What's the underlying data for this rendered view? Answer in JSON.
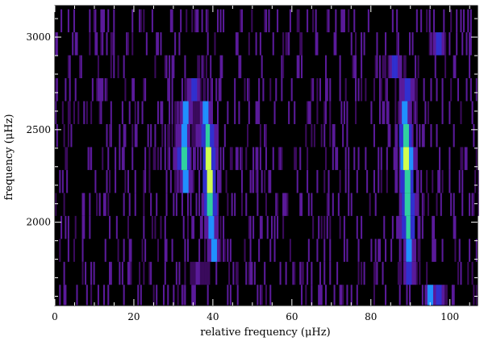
{
  "chart_data": {
    "type": "heatmap",
    "title": "",
    "xlabel": "relative frequency (μHz)",
    "ylabel": "frequency (μHz)",
    "xlim": [
      0,
      107
    ],
    "ylim": [
      1550,
      3170
    ],
    "x_ticks": [
      "0",
      "20",
      "40",
      "60",
      "80",
      "100"
    ],
    "x_tick_values": [
      0,
      20,
      40,
      60,
      80,
      100
    ],
    "y_ticks": [
      "2000",
      "2500",
      "3000"
    ],
    "y_tick_values": [
      2000,
      2500,
      3000
    ],
    "colormap": [
      "#000000",
      "#3a0a5c",
      "#5a1a9a",
      "#3030d0",
      "#2090ff",
      "#30d0a0",
      "#d0ff50",
      "#ffffff"
    ],
    "row_step": 124,
    "rows": [
      {
        "freq": 1600,
        "ridges": [
          {
            "x": 95,
            "v": 0.55
          },
          {
            "x": 97,
            "v": 0.45
          }
        ]
      },
      {
        "freq": 1724,
        "ridges": [
          {
            "x": 89.5,
            "v": 0.45
          },
          {
            "x": 36,
            "v": 0.3
          }
        ]
      },
      {
        "freq": 1848,
        "ridges": [
          {
            "x": 40,
            "v": 0.5
          },
          {
            "x": 89.5,
            "v": 0.55
          }
        ]
      },
      {
        "freq": 1972,
        "ridges": [
          {
            "x": 39.5,
            "v": 0.62
          },
          {
            "x": 89.3,
            "v": 0.72
          }
        ]
      },
      {
        "freq": 2096,
        "ridges": [
          {
            "x": 39.2,
            "v": 0.66
          },
          {
            "x": 89.2,
            "v": 0.7
          }
        ]
      },
      {
        "freq": 2220,
        "ridges": [
          {
            "x": 33,
            "v": 0.58
          },
          {
            "x": 39,
            "v": 0.82
          },
          {
            "x": 89,
            "v": 0.78
          }
        ]
      },
      {
        "freq": 2344,
        "ridges": [
          {
            "x": 32.5,
            "v": 0.66
          },
          {
            "x": 38.8,
            "v": 0.8
          },
          {
            "x": 88.8,
            "v": 0.92
          }
        ]
      },
      {
        "freq": 2468,
        "ridges": [
          {
            "x": 32.5,
            "v": 0.55
          },
          {
            "x": 38.5,
            "v": 0.72
          },
          {
            "x": 88.6,
            "v": 0.72
          }
        ]
      },
      {
        "freq": 2592,
        "ridges": [
          {
            "x": 33,
            "v": 0.5
          },
          {
            "x": 38,
            "v": 0.6
          },
          {
            "x": 88.5,
            "v": 0.55
          }
        ]
      },
      {
        "freq": 2716,
        "ridges": [
          {
            "x": 35,
            "v": 0.45
          },
          {
            "x": 89,
            "v": 0.48
          }
        ]
      },
      {
        "freq": 2840,
        "ridges": [
          {
            "x": 86,
            "v": 0.4
          }
        ]
      },
      {
        "freq": 2964,
        "ridges": [
          {
            "x": 97,
            "v": 0.4
          }
        ]
      },
      {
        "freq": 3088,
        "ridges": []
      }
    ]
  }
}
